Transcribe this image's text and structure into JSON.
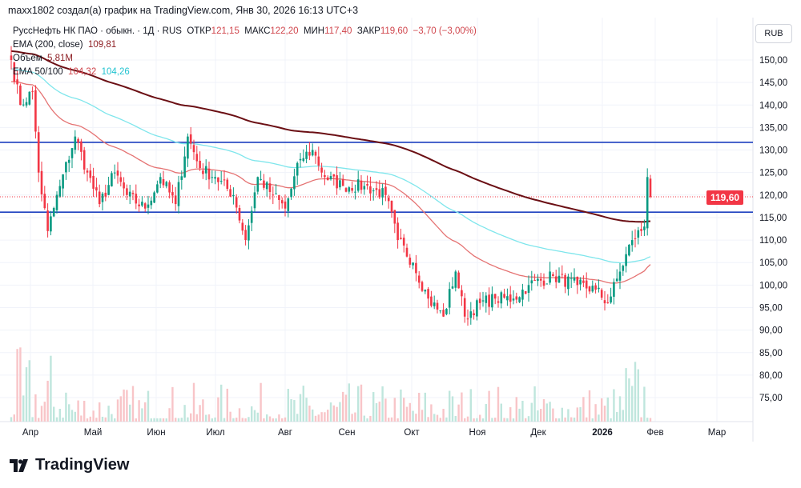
{
  "caption": "maxx1802 создал(а) график на TradingView.com, Янв 30, 2026 16:13 UTC+3",
  "legend": {
    "symbol": "РуссНефть НК ПАО · обыкн. · 1Д · RUS",
    "open_label": "ОТКР",
    "open": "121,15",
    "high_label": "МАКС",
    "high": "122,20",
    "low_label": "МИН",
    "low": "117,40",
    "close_label": "ЗАКР",
    "close": "119,60",
    "change": "−3,70 (−3,00%)",
    "ema200_label": "EMA (200, close)",
    "ema200_value": "109,81",
    "volume_label": "Объём",
    "volume_value": "5,81M",
    "ema50100_label": "EMA 50/100",
    "ema50_value": "104,32",
    "ema100_value": "104,26"
  },
  "currency": "RUB",
  "current_price": "119,60",
  "logo_text": "TradingView",
  "colors": {
    "up": "#089981",
    "down": "#f23645",
    "ema200": "#6b0f14",
    "ema50": "#e57373",
    "ema100": "#7fe6ec",
    "level": "#1c3fbf"
  },
  "chart_data": {
    "type": "candlestick",
    "y_ticks": [
      "150,00",
      "145,00",
      "140,00",
      "135,00",
      "130,00",
      "125,00",
      "120,00",
      "115,00",
      "110,00",
      "105,00",
      "100,00",
      "95,00",
      "90,00",
      "85,00",
      "80,00",
      "75,00"
    ],
    "ylim": [
      75,
      150
    ],
    "x_ticks": [
      "Апр",
      "Май",
      "Июн",
      "Июл",
      "Авг",
      "Сен",
      "Окт",
      "Ноя",
      "Дек",
      "2026",
      "Фев",
      "Мар"
    ],
    "levels": [
      131.7,
      116.2
    ],
    "close_anchors": [
      [
        0,
        150
      ],
      [
        3,
        140
      ],
      [
        7,
        143
      ],
      [
        9,
        125
      ],
      [
        12,
        112
      ],
      [
        16,
        122
      ],
      [
        21,
        133
      ],
      [
        25,
        125
      ],
      [
        29,
        118
      ],
      [
        34,
        125
      ],
      [
        38,
        120
      ],
      [
        44,
        117
      ],
      [
        49,
        124
      ],
      [
        54,
        118
      ],
      [
        58,
        133
      ],
      [
        62,
        126
      ],
      [
        67,
        124
      ],
      [
        73,
        120
      ],
      [
        77,
        110
      ],
      [
        81,
        124
      ],
      [
        86,
        120
      ],
      [
        90,
        117
      ],
      [
        95,
        128
      ],
      [
        99,
        130
      ],
      [
        103,
        124
      ],
      [
        109,
        122
      ],
      [
        116,
        122
      ],
      [
        123,
        120
      ],
      [
        127,
        110
      ],
      [
        132,
        105
      ],
      [
        137,
        97
      ],
      [
        142,
        93
      ],
      [
        146,
        103
      ],
      [
        149,
        93
      ],
      [
        154,
        96
      ],
      [
        159,
        97
      ],
      [
        165,
        97
      ],
      [
        170,
        100
      ],
      [
        178,
        102
      ],
      [
        186,
        100
      ],
      [
        192,
        99
      ],
      [
        196,
        96
      ],
      [
        200,
        103
      ],
      [
        204,
        110
      ],
      [
        208,
        113
      ],
      [
        209,
        124
      ],
      [
        210,
        119.6
      ]
    ]
  }
}
